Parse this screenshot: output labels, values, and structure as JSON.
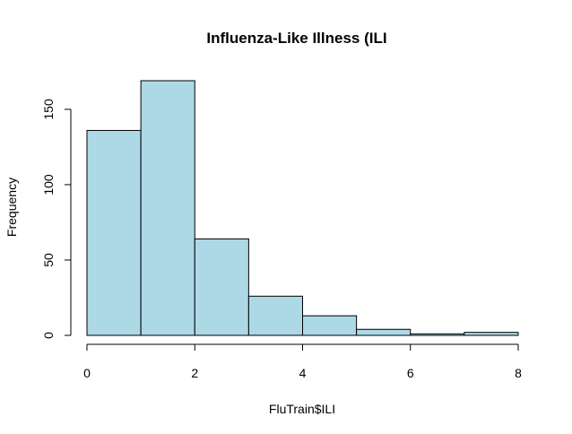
{
  "chart_data": {
    "type": "histogram",
    "title": "Influenza-Like Illness (ILI",
    "xlabel": "FluTrain$ILI",
    "ylabel": "Frequency",
    "bins": [
      {
        "x0": 0,
        "x1": 1,
        "count": 136
      },
      {
        "x0": 1,
        "x1": 2,
        "count": 169
      },
      {
        "x0": 2,
        "x1": 3,
        "count": 64
      },
      {
        "x0": 3,
        "x1": 4,
        "count": 26
      },
      {
        "x0": 4,
        "x1": 5,
        "count": 13
      },
      {
        "x0": 5,
        "x1": 6,
        "count": 4
      },
      {
        "x0": 6,
        "x1": 7,
        "count": 1
      },
      {
        "x0": 7,
        "x1": 8,
        "count": 2
      }
    ],
    "xlim": [
      0,
      8
    ],
    "ylim": [
      0,
      169
    ],
    "x_ticks": [
      "0",
      "2",
      "4",
      "6",
      "8"
    ],
    "y_ticks": [
      "0",
      "50",
      "100",
      "150"
    ],
    "bar_color": "#add8e6",
    "edge_color": "#000000",
    "grid": false
  }
}
